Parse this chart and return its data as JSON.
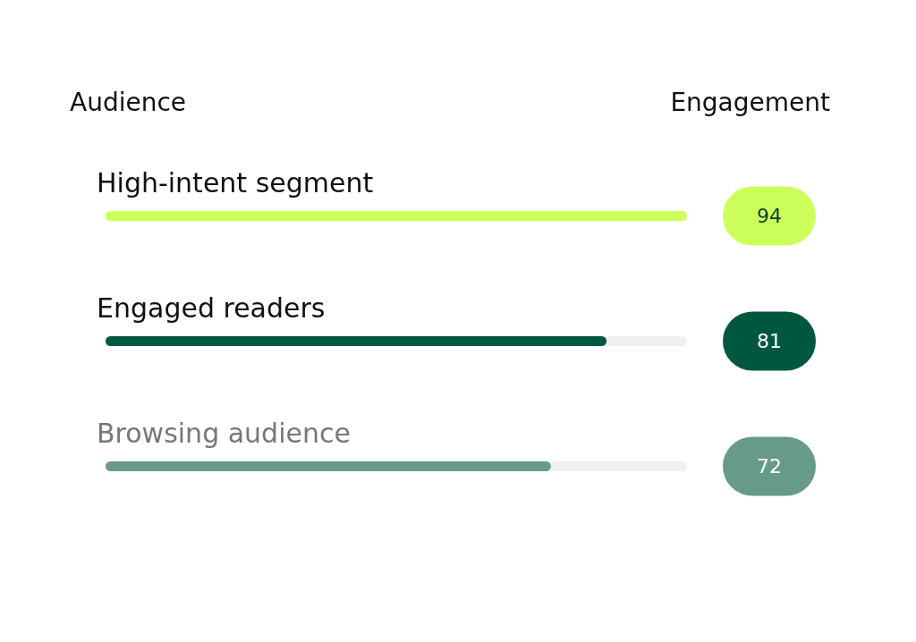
{
  "chart_data": {
    "type": "bar",
    "orientation": "horizontal",
    "ylabel": "Audience",
    "xlabel": "Engagement",
    "categories": [
      "High-intent segment",
      "Engaged readers",
      "Browsing audience"
    ],
    "values": [
      94,
      81,
      72
    ],
    "colors": [
      "#ccff5c",
      "#00573f",
      "#679a8a"
    ],
    "data_labels": true
  }
}
